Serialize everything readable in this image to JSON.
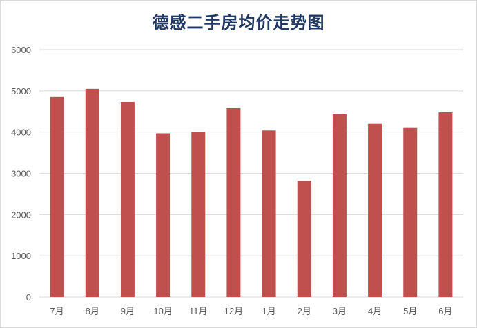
{
  "chart_data": {
    "type": "bar",
    "title": "德感二手房均价走势图",
    "xlabel": "",
    "ylabel": "",
    "categories": [
      "7月",
      "8月",
      "9月",
      "10月",
      "11月",
      "12月",
      "1月",
      "2月",
      "3月",
      "4月",
      "5月",
      "6月"
    ],
    "values": [
      4850,
      5050,
      4730,
      3970,
      4000,
      4580,
      4040,
      2820,
      4430,
      4200,
      4100,
      4480
    ],
    "ylim": [
      0,
      6000
    ],
    "yticks": [
      0,
      1000,
      2000,
      3000,
      4000,
      5000,
      6000
    ],
    "grid": true,
    "legend": "none",
    "bar_color": "#c0504d",
    "grid_color": "#d9d9d9",
    "title_color": "#1f3864"
  }
}
